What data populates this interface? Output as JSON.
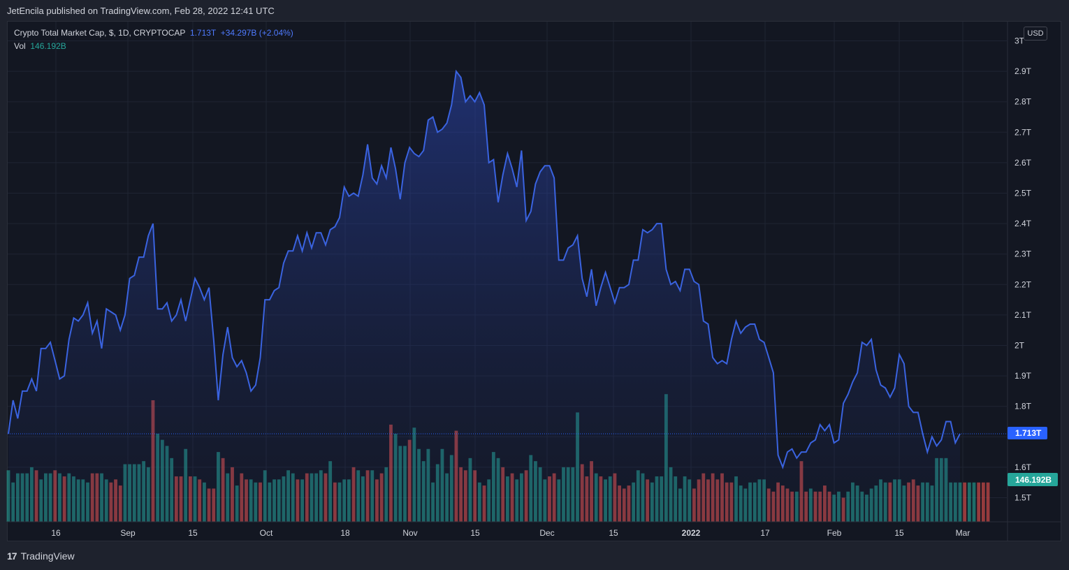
{
  "header": {
    "published": "JetEncila published on TradingView.com, Feb 28, 2022 12:41 UTC"
  },
  "legend": {
    "symbol": "Crypto Total Market Cap, $, 1D, CRYPTOCAP",
    "price": "1.713T",
    "change": "+34.297B (+2.04%)",
    "vol_label": "Vol",
    "vol_value": "146.192B"
  },
  "currency": "USD",
  "footer": {
    "brand": "TradingView",
    "logo_text": "17"
  },
  "colors": {
    "line": "#3a63e0",
    "up": "#26a69a",
    "down": "#ef5350",
    "price_tag": "#2962ff",
    "vol_tag": "#26a69a"
  },
  "chart_data": {
    "type": "area",
    "title": "Crypto Total Market Cap, $, 1D, CRYPTOCAP",
    "y_axis": {
      "ticks": [
        "3T",
        "2.9T",
        "2.8T",
        "2.7T",
        "2.6T",
        "2.5T",
        "2.4T",
        "2.3T",
        "2.2T",
        "2.1T",
        "2T",
        "1.9T",
        "1.8T",
        "1.6T",
        "1.5T"
      ],
      "ylim": [
        1.42,
        3.0
      ]
    },
    "x_axis": {
      "ticks": [
        "16",
        "Sep",
        "15",
        "Oct",
        "18",
        "Nov",
        "15",
        "Dec",
        "15",
        "2022",
        "17",
        "Feb",
        "15",
        "Mar"
      ]
    },
    "last_price_label": "1.713T",
    "last_volume_label": "146.192B",
    "series": [
      {
        "name": "Crypto Total Market Cap",
        "unit": "T USD",
        "values": [
          1.71,
          1.82,
          1.76,
          1.85,
          1.85,
          1.89,
          1.85,
          1.99,
          1.99,
          2.01,
          1.95,
          1.89,
          1.9,
          2.02,
          2.09,
          2.08,
          2.1,
          2.14,
          2.04,
          2.08,
          1.99,
          2.12,
          2.11,
          2.1,
          2.05,
          2.1,
          2.22,
          2.23,
          2.29,
          2.29,
          2.36,
          2.4,
          2.12,
          2.12,
          2.14,
          2.08,
          2.1,
          2.15,
          2.08,
          2.15,
          2.22,
          2.19,
          2.15,
          2.19,
          2.02,
          1.82,
          1.97,
          2.06,
          1.96,
          1.93,
          1.95,
          1.91,
          1.85,
          1.87,
          1.96,
          2.15,
          2.15,
          2.18,
          2.19,
          2.27,
          2.31,
          2.31,
          2.36,
          2.31,
          2.37,
          2.32,
          2.37,
          2.37,
          2.33,
          2.38,
          2.39,
          2.42,
          2.52,
          2.49,
          2.5,
          2.49,
          2.56,
          2.66,
          2.55,
          2.53,
          2.59,
          2.55,
          2.65,
          2.58,
          2.48,
          2.6,
          2.65,
          2.63,
          2.62,
          2.64,
          2.74,
          2.75,
          2.7,
          2.71,
          2.73,
          2.79,
          2.9,
          2.88,
          2.8,
          2.82,
          2.8,
          2.83,
          2.79,
          2.6,
          2.61,
          2.47,
          2.56,
          2.63,
          2.58,
          2.52,
          2.64,
          2.41,
          2.44,
          2.53,
          2.57,
          2.59,
          2.59,
          2.55,
          2.28,
          2.28,
          2.32,
          2.33,
          2.36,
          2.22,
          2.16,
          2.25,
          2.13,
          2.19,
          2.24,
          2.19,
          2.14,
          2.19,
          2.19,
          2.2,
          2.28,
          2.28,
          2.38,
          2.37,
          2.38,
          2.4,
          2.4,
          2.25,
          2.2,
          2.21,
          2.18,
          2.25,
          2.25,
          2.21,
          2.2,
          2.08,
          2.07,
          1.96,
          1.94,
          1.95,
          1.94,
          2.02,
          2.08,
          2.04,
          2.06,
          2.07,
          2.07,
          2.02,
          2.01,
          1.96,
          1.91,
          1.64,
          1.6,
          1.65,
          1.66,
          1.63,
          1.65,
          1.65,
          1.68,
          1.69,
          1.74,
          1.72,
          1.74,
          1.68,
          1.69,
          1.81,
          1.84,
          1.88,
          1.91,
          2.01,
          2.0,
          2.02,
          1.92,
          1.87,
          1.86,
          1.83,
          1.86,
          1.97,
          1.94,
          1.8,
          1.78,
          1.78,
          1.71,
          1.65,
          1.7,
          1.67,
          1.69,
          1.75,
          1.75,
          1.68,
          1.71
        ]
      },
      {
        "name": "Vol",
        "values": [
          1.59,
          1.55,
          1.58,
          1.58,
          1.58,
          1.6,
          1.59,
          1.56,
          1.58,
          1.58,
          1.59,
          1.58,
          1.57,
          1.58,
          1.57,
          1.56,
          1.56,
          1.55,
          1.58,
          1.58,
          1.58,
          1.56,
          1.55,
          1.56,
          1.54,
          1.61,
          1.61,
          1.61,
          1.61,
          1.62,
          1.6,
          1.82,
          1.71,
          1.69,
          1.67,
          1.63,
          1.57,
          1.57,
          1.66,
          1.57,
          1.57,
          1.56,
          1.55,
          1.53,
          1.53,
          1.65,
          1.63,
          1.58,
          1.6,
          1.54,
          1.58,
          1.56,
          1.56,
          1.55,
          1.55,
          1.59,
          1.55,
          1.56,
          1.56,
          1.57,
          1.59,
          1.58,
          1.56,
          1.56,
          1.58,
          1.58,
          1.58,
          1.59,
          1.58,
          1.62,
          1.55,
          1.55,
          1.56,
          1.56,
          1.6,
          1.59,
          1.57,
          1.59,
          1.59,
          1.56,
          1.58,
          1.6,
          1.74,
          1.71,
          1.67,
          1.67,
          1.69,
          1.73,
          1.66,
          1.62,
          1.66,
          1.55,
          1.61,
          1.66,
          1.58,
          1.64,
          1.72,
          1.6,
          1.59,
          1.63,
          1.59,
          1.55,
          1.54,
          1.56,
          1.65,
          1.63,
          1.6,
          1.57,
          1.58,
          1.56,
          1.58,
          1.59,
          1.64,
          1.62,
          1.6,
          1.56,
          1.57,
          1.58,
          1.56,
          1.6,
          1.6,
          1.6,
          1.78,
          1.61,
          1.57,
          1.62,
          1.58,
          1.57,
          1.56,
          1.57,
          1.58,
          1.54,
          1.53,
          1.54,
          1.55,
          1.59,
          1.58,
          1.56,
          1.55,
          1.57,
          1.57,
          1.84,
          1.6,
          1.57,
          1.53,
          1.57,
          1.56,
          1.53,
          1.56,
          1.58,
          1.56,
          1.58,
          1.56,
          1.58,
          1.55,
          1.55,
          1.57,
          1.54,
          1.53,
          1.55,
          1.55,
          1.56,
          1.56,
          1.53,
          1.52,
          1.55,
          1.54,
          1.53,
          1.52,
          1.52,
          1.62,
          1.52,
          1.53,
          1.52,
          1.52,
          1.54,
          1.52,
          1.51,
          1.52,
          1.5,
          1.52,
          1.55,
          1.54,
          1.52,
          1.51,
          1.53,
          1.54,
          1.56,
          1.55,
          1.55,
          1.56,
          1.56,
          1.54,
          1.55,
          1.56,
          1.54,
          1.55,
          1.55,
          1.54,
          1.63,
          1.63,
          1.63,
          1.55,
          1.55,
          1.55,
          1.55,
          1.55,
          1.55,
          1.55,
          1.55,
          1.55
        ]
      }
    ],
    "volume_up": [
      1,
      1,
      1,
      1,
      1,
      1,
      0,
      1,
      1,
      1,
      0,
      1,
      0,
      1,
      1,
      1,
      1,
      1,
      0,
      0,
      1,
      1,
      0,
      0,
      0,
      1,
      1,
      1,
      1,
      1,
      1,
      0,
      1,
      1,
      1,
      1,
      0,
      0,
      1,
      0,
      1,
      0,
      1,
      0,
      0,
      1,
      0,
      1,
      0,
      1,
      0,
      0,
      1,
      1,
      0,
      1,
      1,
      1,
      1,
      1,
      1,
      1,
      0,
      1,
      0,
      1,
      1,
      1,
      0,
      1,
      0,
      1,
      1,
      1,
      0,
      1,
      1,
      0,
      1,
      0,
      0,
      1,
      0,
      1,
      1,
      1,
      0,
      1,
      1,
      1,
      1,
      1,
      1,
      1,
      1,
      1,
      0,
      0,
      0,
      1,
      0,
      1,
      0,
      1,
      1,
      1,
      0,
      1,
      0,
      1,
      1,
      0,
      1,
      1,
      1,
      1,
      0,
      0,
      1,
      1,
      1,
      1,
      1,
      0,
      0,
      0,
      1,
      0,
      1,
      1,
      0,
      0,
      0,
      0,
      1,
      1,
      1,
      0,
      1,
      1,
      1,
      1,
      1,
      1,
      1,
      1,
      1,
      0,
      0,
      0,
      0,
      0,
      0,
      0,
      0,
      0,
      1,
      1,
      1,
      1,
      1,
      1,
      1,
      0,
      0,
      0,
      0,
      0,
      0,
      1,
      0,
      0,
      1,
      0,
      0,
      0,
      0,
      1,
      1,
      0,
      1,
      1,
      1,
      1,
      1,
      1,
      1,
      1,
      1,
      0,
      1,
      1,
      1,
      0,
      0,
      0,
      1,
      1,
      1,
      1,
      1,
      1,
      1,
      1,
      1,
      0,
      1,
      1
    ]
  }
}
